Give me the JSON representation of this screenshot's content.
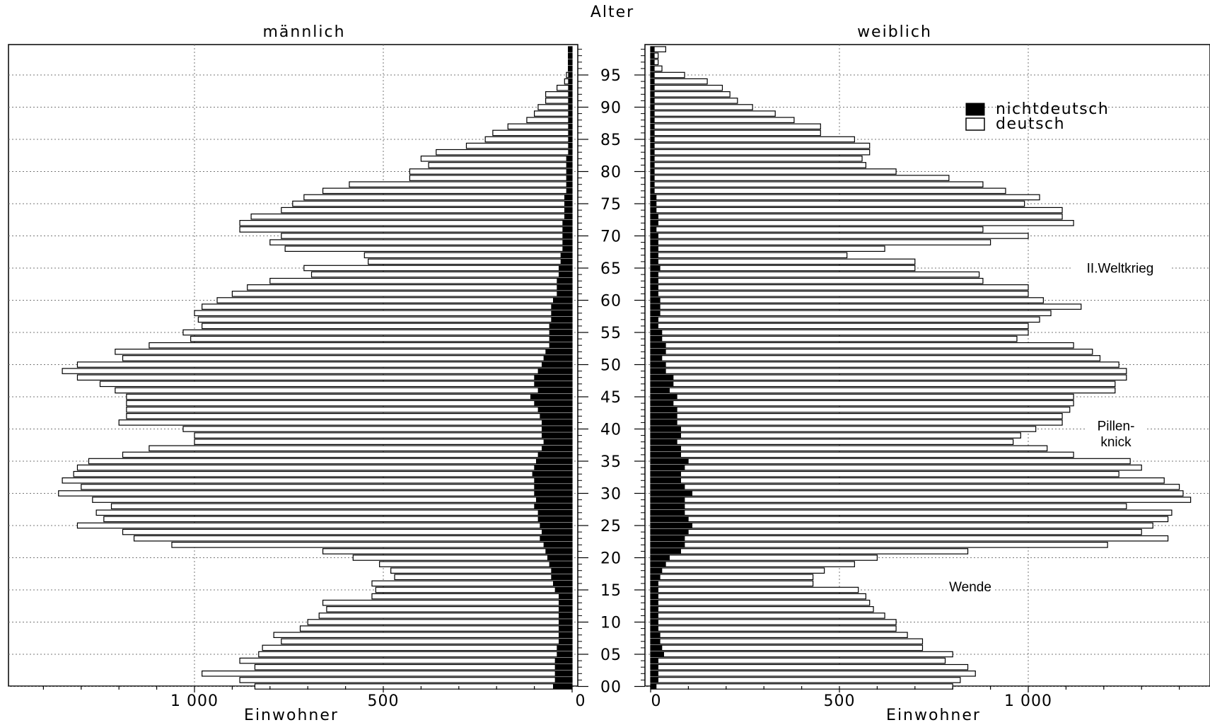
{
  "chart_data": {
    "type": "population-pyramid",
    "title": "Alter",
    "panels": {
      "male": {
        "title": "männlich",
        "xlabel": "Einwohner",
        "xlim": [
          0,
          1400
        ],
        "ticks": [
          {
            "v": 1000,
            "l": "1 000"
          },
          {
            "v": 500,
            "l": "500"
          },
          {
            "v": 0,
            "l": "0"
          }
        ]
      },
      "female": {
        "title": "weiblich",
        "xlabel": "Einwohner",
        "xlim": [
          0,
          1400
        ],
        "ticks": [
          {
            "v": 0,
            "l": "0"
          },
          {
            "v": 500,
            "l": "500"
          },
          {
            "v": 1000,
            "l": "1 000"
          }
        ]
      }
    },
    "age_ticks": [
      "00",
      "05",
      "10",
      "15",
      "20",
      "25",
      "30",
      "35",
      "40",
      "45",
      "50",
      "55",
      "60",
      "65",
      "70",
      "75",
      "80",
      "85",
      "90",
      "95"
    ],
    "legend": {
      "position": "top-right",
      "items": [
        {
          "label": "nichtdeutsch",
          "color": "#000000"
        },
        {
          "label": "deutsch",
          "color": "#ffffff"
        }
      ]
    },
    "annotations": [
      {
        "text": "II.Weltkrieg",
        "age": 65,
        "side": "female"
      },
      {
        "text": "Pillen-",
        "age": 40.5,
        "side": "female"
      },
      {
        "text": "knick",
        "age": 38,
        "side": "female"
      },
      {
        "text": "Wende",
        "age": 15.5,
        "side": "female"
      }
    ],
    "ages": [
      0,
      1,
      2,
      3,
      4,
      5,
      6,
      7,
      8,
      9,
      10,
      11,
      12,
      13,
      14,
      15,
      16,
      17,
      18,
      19,
      20,
      21,
      22,
      23,
      24,
      25,
      26,
      27,
      28,
      29,
      30,
      31,
      32,
      33,
      34,
      35,
      36,
      37,
      38,
      39,
      40,
      41,
      42,
      43,
      44,
      45,
      46,
      47,
      48,
      49,
      50,
      51,
      52,
      53,
      54,
      55,
      56,
      57,
      58,
      59,
      60,
      61,
      62,
      63,
      64,
      65,
      66,
      67,
      68,
      69,
      70,
      71,
      72,
      73,
      74,
      75,
      76,
      77,
      78,
      79,
      80,
      81,
      82,
      83,
      84,
      85,
      86,
      87,
      88,
      89,
      90,
      91,
      92,
      93,
      94,
      95,
      96,
      97,
      98,
      99
    ],
    "male_total": [
      840,
      880,
      980,
      840,
      880,
      830,
      820,
      770,
      790,
      720,
      700,
      670,
      650,
      660,
      530,
      520,
      530,
      470,
      480,
      510,
      580,
      660,
      1060,
      1160,
      1190,
      1310,
      1240,
      1260,
      1220,
      1270,
      1360,
      1300,
      1350,
      1320,
      1310,
      1280,
      1190,
      1120,
      1000,
      1000,
      1030,
      1200,
      1180,
      1180,
      1180,
      1180,
      1210,
      1250,
      1310,
      1350,
      1310,
      1190,
      1210,
      1120,
      1010,
      1030,
      980,
      990,
      1000,
      980,
      940,
      900,
      860,
      800,
      690,
      710,
      540,
      550,
      760,
      800,
      770,
      880,
      880,
      850,
      770,
      740,
      710,
      660,
      590,
      430,
      430,
      380,
      400,
      360,
      280,
      230,
      210,
      170,
      120,
      100,
      90,
      70,
      70,
      40,
      20,
      15,
      10,
      10,
      10,
      10
    ],
    "male_non": [
      50,
      45,
      45,
      45,
      45,
      40,
      40,
      35,
      35,
      35,
      35,
      35,
      35,
      35,
      35,
      45,
      50,
      55,
      55,
      60,
      65,
      70,
      75,
      85,
      80,
      85,
      90,
      90,
      100,
      95,
      100,
      100,
      100,
      105,
      100,
      95,
      90,
      80,
      75,
      80,
      80,
      80,
      85,
      90,
      100,
      110,
      90,
      100,
      100,
      90,
      80,
      75,
      70,
      60,
      60,
      60,
      60,
      55,
      55,
      55,
      50,
      40,
      40,
      40,
      35,
      35,
      30,
      30,
      25,
      25,
      25,
      25,
      25,
      20,
      20,
      20,
      20,
      15,
      15,
      15,
      15,
      15,
      15,
      10,
      10,
      10,
      10,
      10,
      10,
      10,
      10,
      10,
      10,
      10,
      10,
      10,
      10,
      10,
      10,
      10
    ],
    "female_total": [
      800,
      820,
      860,
      840,
      780,
      800,
      720,
      720,
      680,
      650,
      650,
      620,
      590,
      580,
      570,
      550,
      430,
      430,
      460,
      540,
      600,
      840,
      1210,
      1370,
      1300,
      1330,
      1370,
      1380,
      1260,
      1430,
      1410,
      1400,
      1360,
      1240,
      1300,
      1270,
      1120,
      1050,
      960,
      980,
      1020,
      1090,
      1090,
      1110,
      1120,
      1120,
      1230,
      1230,
      1260,
      1260,
      1240,
      1190,
      1170,
      1120,
      970,
      1000,
      1000,
      1030,
      1060,
      1140,
      1040,
      1000,
      1000,
      880,
      870,
      700,
      700,
      520,
      620,
      900,
      1000,
      880,
      1120,
      1090,
      1090,
      990,
      1030,
      940,
      880,
      790,
      650,
      570,
      560,
      580,
      580,
      540,
      450,
      450,
      380,
      330,
      270,
      230,
      210,
      190,
      150,
      90,
      30,
      20,
      20,
      40
    ],
    "female_non": [
      15,
      20,
      20,
      20,
      20,
      35,
      30,
      25,
      25,
      20,
      20,
      20,
      20,
      20,
      20,
      20,
      20,
      25,
      30,
      40,
      50,
      80,
      90,
      90,
      100,
      110,
      100,
      90,
      90,
      90,
      110,
      90,
      80,
      80,
      90,
      100,
      80,
      80,
      70,
      80,
      80,
      70,
      70,
      70,
      60,
      70,
      50,
      60,
      60,
      40,
      40,
      30,
      40,
      40,
      30,
      30,
      20,
      20,
      25,
      25,
      25,
      20,
      20,
      20,
      20,
      25,
      20,
      20,
      20,
      20,
      20,
      15,
      20,
      20,
      15,
      15,
      15,
      10,
      10,
      10,
      10,
      10,
      10,
      10,
      10,
      10,
      10,
      10,
      10,
      10,
      10,
      10,
      10,
      10,
      10,
      10,
      10,
      10,
      10,
      10
    ]
  }
}
